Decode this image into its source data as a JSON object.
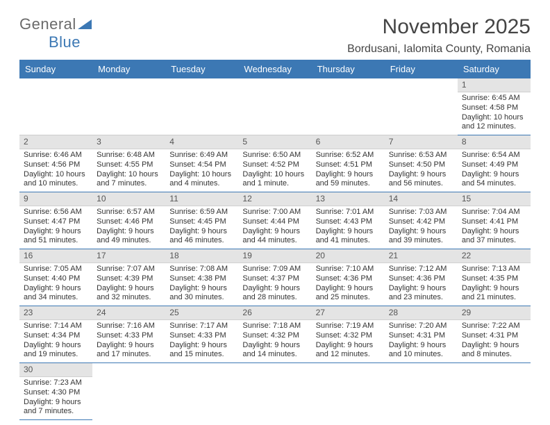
{
  "logo": {
    "text_a": "General",
    "text_b": "Blue"
  },
  "title": "November 2025",
  "subtitle": "Bordusani, Ialomita County, Romania",
  "colors": {
    "accent": "#3c78b4",
    "header_bg": "#3c78b4",
    "daynum_bg": "#e4e4e4",
    "rule": "#3c78b4"
  },
  "calendar": {
    "columns": [
      "Sunday",
      "Monday",
      "Tuesday",
      "Wednesday",
      "Thursday",
      "Friday",
      "Saturday"
    ],
    "first_weekday_index": 6,
    "days": [
      {
        "n": 1,
        "sunrise": "6:45 AM",
        "sunset": "4:58 PM",
        "daylight": "10 hours and 12 minutes."
      },
      {
        "n": 2,
        "sunrise": "6:46 AM",
        "sunset": "4:56 PM",
        "daylight": "10 hours and 10 minutes."
      },
      {
        "n": 3,
        "sunrise": "6:48 AM",
        "sunset": "4:55 PM",
        "daylight": "10 hours and 7 minutes."
      },
      {
        "n": 4,
        "sunrise": "6:49 AM",
        "sunset": "4:54 PM",
        "daylight": "10 hours and 4 minutes."
      },
      {
        "n": 5,
        "sunrise": "6:50 AM",
        "sunset": "4:52 PM",
        "daylight": "10 hours and 1 minute."
      },
      {
        "n": 6,
        "sunrise": "6:52 AM",
        "sunset": "4:51 PM",
        "daylight": "9 hours and 59 minutes."
      },
      {
        "n": 7,
        "sunrise": "6:53 AM",
        "sunset": "4:50 PM",
        "daylight": "9 hours and 56 minutes."
      },
      {
        "n": 8,
        "sunrise": "6:54 AM",
        "sunset": "4:49 PM",
        "daylight": "9 hours and 54 minutes."
      },
      {
        "n": 9,
        "sunrise": "6:56 AM",
        "sunset": "4:47 PM",
        "daylight": "9 hours and 51 minutes."
      },
      {
        "n": 10,
        "sunrise": "6:57 AM",
        "sunset": "4:46 PM",
        "daylight": "9 hours and 49 minutes."
      },
      {
        "n": 11,
        "sunrise": "6:59 AM",
        "sunset": "4:45 PM",
        "daylight": "9 hours and 46 minutes."
      },
      {
        "n": 12,
        "sunrise": "7:00 AM",
        "sunset": "4:44 PM",
        "daylight": "9 hours and 44 minutes."
      },
      {
        "n": 13,
        "sunrise": "7:01 AM",
        "sunset": "4:43 PM",
        "daylight": "9 hours and 41 minutes."
      },
      {
        "n": 14,
        "sunrise": "7:03 AM",
        "sunset": "4:42 PM",
        "daylight": "9 hours and 39 minutes."
      },
      {
        "n": 15,
        "sunrise": "7:04 AM",
        "sunset": "4:41 PM",
        "daylight": "9 hours and 37 minutes."
      },
      {
        "n": 16,
        "sunrise": "7:05 AM",
        "sunset": "4:40 PM",
        "daylight": "9 hours and 34 minutes."
      },
      {
        "n": 17,
        "sunrise": "7:07 AM",
        "sunset": "4:39 PM",
        "daylight": "9 hours and 32 minutes."
      },
      {
        "n": 18,
        "sunrise": "7:08 AM",
        "sunset": "4:38 PM",
        "daylight": "9 hours and 30 minutes."
      },
      {
        "n": 19,
        "sunrise": "7:09 AM",
        "sunset": "4:37 PM",
        "daylight": "9 hours and 28 minutes."
      },
      {
        "n": 20,
        "sunrise": "7:10 AM",
        "sunset": "4:36 PM",
        "daylight": "9 hours and 25 minutes."
      },
      {
        "n": 21,
        "sunrise": "7:12 AM",
        "sunset": "4:36 PM",
        "daylight": "9 hours and 23 minutes."
      },
      {
        "n": 22,
        "sunrise": "7:13 AM",
        "sunset": "4:35 PM",
        "daylight": "9 hours and 21 minutes."
      },
      {
        "n": 23,
        "sunrise": "7:14 AM",
        "sunset": "4:34 PM",
        "daylight": "9 hours and 19 minutes."
      },
      {
        "n": 24,
        "sunrise": "7:16 AM",
        "sunset": "4:33 PM",
        "daylight": "9 hours and 17 minutes."
      },
      {
        "n": 25,
        "sunrise": "7:17 AM",
        "sunset": "4:33 PM",
        "daylight": "9 hours and 15 minutes."
      },
      {
        "n": 26,
        "sunrise": "7:18 AM",
        "sunset": "4:32 PM",
        "daylight": "9 hours and 14 minutes."
      },
      {
        "n": 27,
        "sunrise": "7:19 AM",
        "sunset": "4:32 PM",
        "daylight": "9 hours and 12 minutes."
      },
      {
        "n": 28,
        "sunrise": "7:20 AM",
        "sunset": "4:31 PM",
        "daylight": "9 hours and 10 minutes."
      },
      {
        "n": 29,
        "sunrise": "7:22 AM",
        "sunset": "4:31 PM",
        "daylight": "9 hours and 8 minutes."
      },
      {
        "n": 30,
        "sunrise": "7:23 AM",
        "sunset": "4:30 PM",
        "daylight": "9 hours and 7 minutes."
      }
    ],
    "labels": {
      "sunrise": "Sunrise:",
      "sunset": "Sunset:",
      "daylight": "Daylight:"
    }
  },
  "typography": {
    "title_fontsize": 30,
    "subtitle_fontsize": 16,
    "dayhdr_fontsize": 13,
    "cell_fontsize": 11
  }
}
